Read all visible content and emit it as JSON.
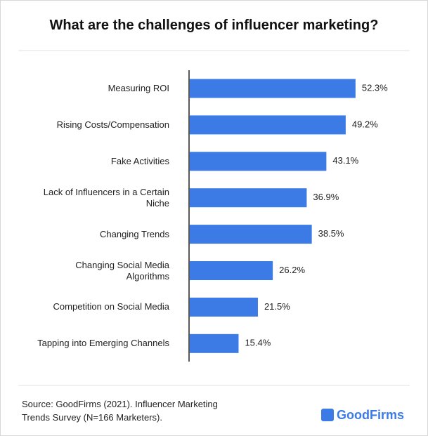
{
  "chart_data": {
    "type": "bar",
    "orientation": "horizontal",
    "title": "What are the challenges of influencer marketing?",
    "categories": [
      "Measuring ROI",
      "Rising Costs/Compensation",
      "Fake Activities",
      "Lack of Influencers in a Certain Niche",
      "Changing Trends",
      "Changing Social Media Algorithms",
      "Competition on Social Media",
      "Tapping into Emerging Channels"
    ],
    "values": [
      52.3,
      49.2,
      43.1,
      36.9,
      38.5,
      26.2,
      21.5,
      15.4
    ],
    "value_labels": [
      "52.3%",
      "49.2%",
      "43.1%",
      "36.9%",
      "38.5%",
      "26.2%",
      "21.5%",
      "15.4%"
    ],
    "color": "#3c7be6",
    "source": "Source: GoodFirms (2021). Influencer Marketing Trends Survey (N=166 Marketers).",
    "brand": "GoodFirms"
  }
}
